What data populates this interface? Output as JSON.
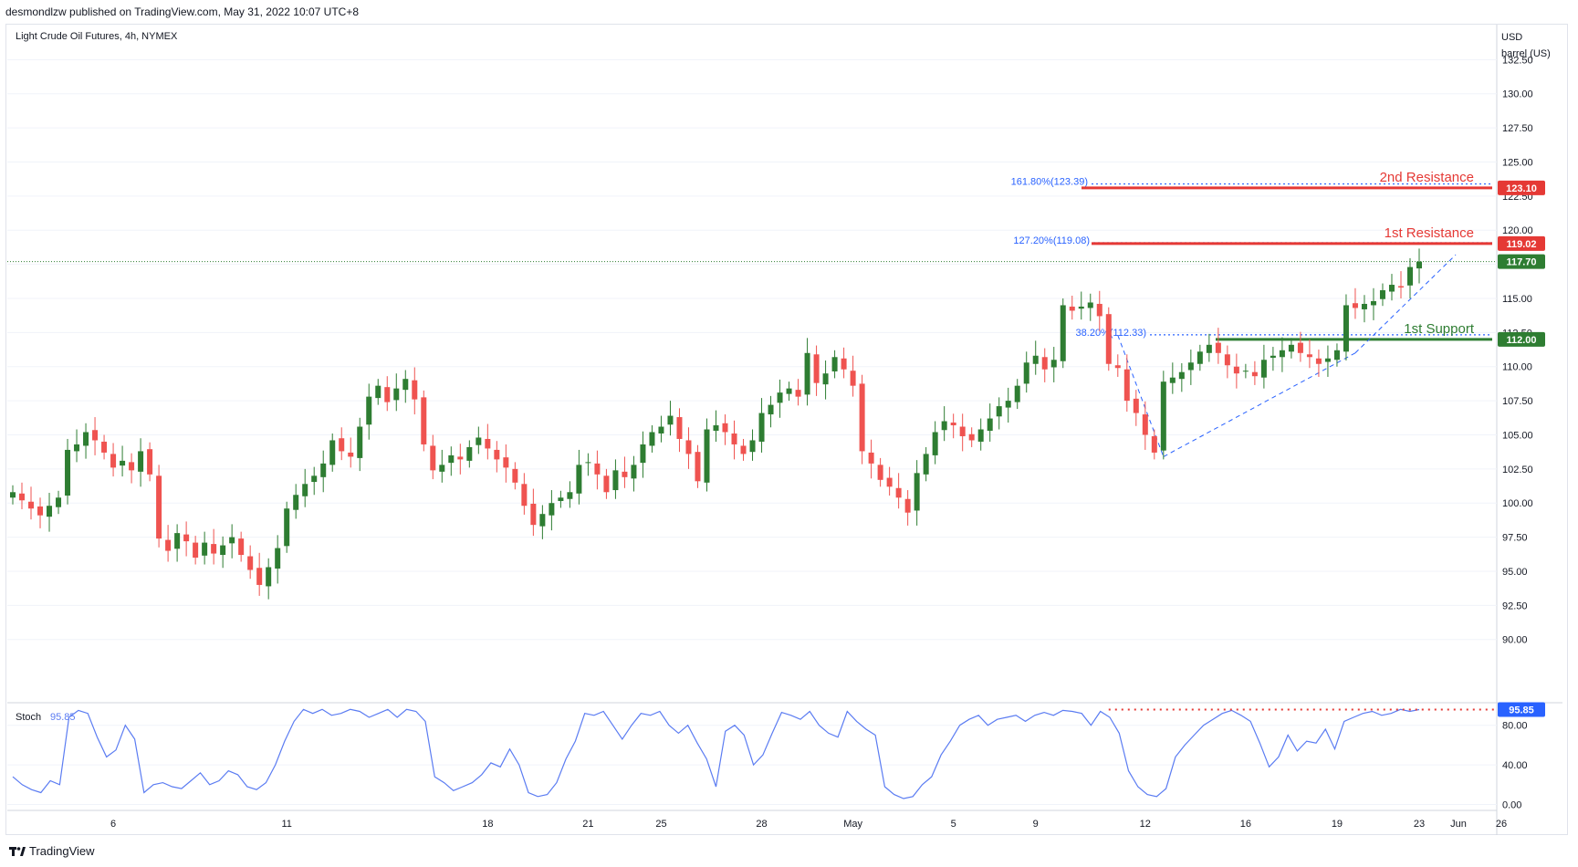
{
  "header": {
    "publish_line": "desmondlzw published on TradingView.com, May 31, 2022 10:07 UTC+8"
  },
  "footer": {
    "brand": "TradingView"
  },
  "colors": {
    "up": "#26a69a",
    "up_body": "#2e7d32",
    "down": "#ef5350",
    "resistance": "#e53935",
    "support": "#2e7d32",
    "fib": "#2962ff",
    "stoch": "#5b7cf2",
    "grid": "#f0f3fa"
  },
  "chart_data": [
    {
      "type": "candlestick",
      "title": "Light Crude Oil Futures, 4h, NYMEX",
      "currency_label": [
        "USD",
        "barrel (US)"
      ],
      "ylim": [
        85.5,
        135.0
      ],
      "y_ticks": [
        90.0,
        92.5,
        95.0,
        97.5,
        100.0,
        102.5,
        105.0,
        107.5,
        110.0,
        112.5,
        115.0,
        117.5,
        120.0,
        122.5,
        125.0,
        127.5,
        130.0,
        132.5
      ],
      "x_ticks": [
        "6",
        "11",
        "18",
        "21",
        "25",
        "28",
        "May",
        "5",
        "9",
        "12",
        "16",
        "19",
        "23",
        "26",
        "Jun"
      ],
      "close_series": [
        100.8,
        100.2,
        99.6,
        99.1,
        99.8,
        100.4,
        103.9,
        104.3,
        105.2,
        104.6,
        103.7,
        102.6,
        103.1,
        102.4,
        103.8,
        102.1,
        97.4,
        96.5,
        97.8,
        97.2,
        96.0,
        97.1,
        96.3,
        96.9,
        97.5,
        96.2,
        95.1,
        94.0,
        95.3,
        96.7,
        99.6,
        100.6,
        101.4,
        102.0,
        102.9,
        104.6,
        103.8,
        103.4,
        105.6,
        107.8,
        108.6,
        107.4,
        108.4,
        109.1,
        107.6,
        104.3,
        102.4,
        102.8,
        103.5,
        103.2,
        104.1,
        104.8,
        104.0,
        103.2,
        102.6,
        101.5,
        99.8,
        98.4,
        99.2,
        100.0,
        100.4,
        100.8,
        102.8,
        103.0,
        102.1,
        100.8,
        102.4,
        101.9,
        102.8,
        104.3,
        105.2,
        105.6,
        106.4,
        104.7,
        103.6,
        101.6,
        105.4,
        105.7,
        105.2,
        104.3,
        103.6,
        104.6,
        106.6,
        107.2,
        108.1,
        108.4,
        107.8,
        111.0,
        108.8,
        109.5,
        110.7,
        109.8,
        108.6,
        103.8,
        102.9,
        101.7,
        101.2,
        100.4,
        99.3,
        102.2,
        103.6,
        105.2,
        106.0,
        105.7,
        104.9,
        104.6,
        105.4,
        106.2,
        107.1,
        107.5,
        108.6,
        110.3,
        110.8,
        109.8,
        110.5,
        114.5,
        114.1,
        114.4,
        114.7,
        113.7,
        110.2,
        109.9,
        107.5,
        106.6,
        105.0,
        103.7,
        108.9,
        109.2,
        109.6,
        110.3,
        111.1,
        111.6,
        111.0,
        110.1,
        109.5,
        109.7,
        109.3,
        110.5,
        110.8,
        111.2,
        111.6,
        111.0,
        110.7,
        110.2,
        110.6,
        111.2,
        114.5,
        114.3,
        114.6,
        114.8,
        115.6,
        116.0,
        115.8,
        117.3,
        117.7
      ],
      "annotations": [
        {
          "text": "161.80%(123.39)",
          "value": 123.39,
          "style": "fib-dotted"
        },
        {
          "text": "127.20%(119.08)",
          "value": 119.08,
          "style": "fib-dotted"
        },
        {
          "text": "38.20%(112.33)",
          "value": 112.33,
          "style": "fib-dotted"
        },
        {
          "text": "2nd Resistance",
          "value": 123.1,
          "style": "resistance"
        },
        {
          "text": "1st Resistance",
          "value": 119.02,
          "style": "resistance"
        },
        {
          "text": "1st Support",
          "value": 112.0,
          "style": "support"
        }
      ],
      "price_badges": [
        {
          "text": "123.10",
          "value": 123.1,
          "color": "#e53935"
        },
        {
          "text": "119.02",
          "value": 119.02,
          "color": "#e53935"
        },
        {
          "text": "117.70",
          "value": 117.7,
          "color": "#2e7d32"
        },
        {
          "text": "112.00",
          "value": 112.0,
          "color": "#2e7d32"
        }
      ],
      "last_price": 117.7
    },
    {
      "type": "line",
      "title": "Stoch",
      "value_label": "95.85",
      "ylim": [
        -6,
        100
      ],
      "y_ticks": [
        0.0,
        40.0,
        80.0
      ],
      "level": 95.85,
      "badge": "95.85",
      "values": [
        28,
        20,
        15,
        12,
        24,
        20,
        88,
        95,
        92,
        68,
        48,
        55,
        80,
        66,
        12,
        20,
        22,
        18,
        16,
        24,
        32,
        20,
        24,
        34,
        30,
        18,
        15,
        22,
        40,
        64,
        84,
        96,
        92,
        96,
        90,
        92,
        96,
        94,
        88,
        92,
        96,
        88,
        96,
        94,
        84,
        28,
        22,
        14,
        18,
        22,
        30,
        42,
        38,
        56,
        40,
        12,
        8,
        10,
        22,
        46,
        64,
        92,
        90,
        94,
        80,
        66,
        80,
        92,
        90,
        94,
        80,
        72,
        80,
        62,
        46,
        18,
        74,
        80,
        70,
        40,
        50,
        72,
        93,
        90,
        86,
        94,
        80,
        72,
        68,
        94,
        84,
        76,
        70,
        18,
        10,
        6,
        8,
        20,
        28,
        50,
        64,
        80,
        86,
        90,
        80,
        86,
        88,
        90,
        84,
        90,
        93,
        90,
        95,
        94,
        92,
        80,
        94,
        88,
        72,
        34,
        18,
        10,
        8,
        16,
        48,
        60,
        70,
        80,
        86,
        92,
        95,
        90,
        84,
        62,
        38,
        48,
        70,
        54,
        64,
        62,
        76,
        56,
        84,
        88,
        92,
        94,
        90,
        92,
        96,
        94,
        95.85
      ]
    }
  ]
}
